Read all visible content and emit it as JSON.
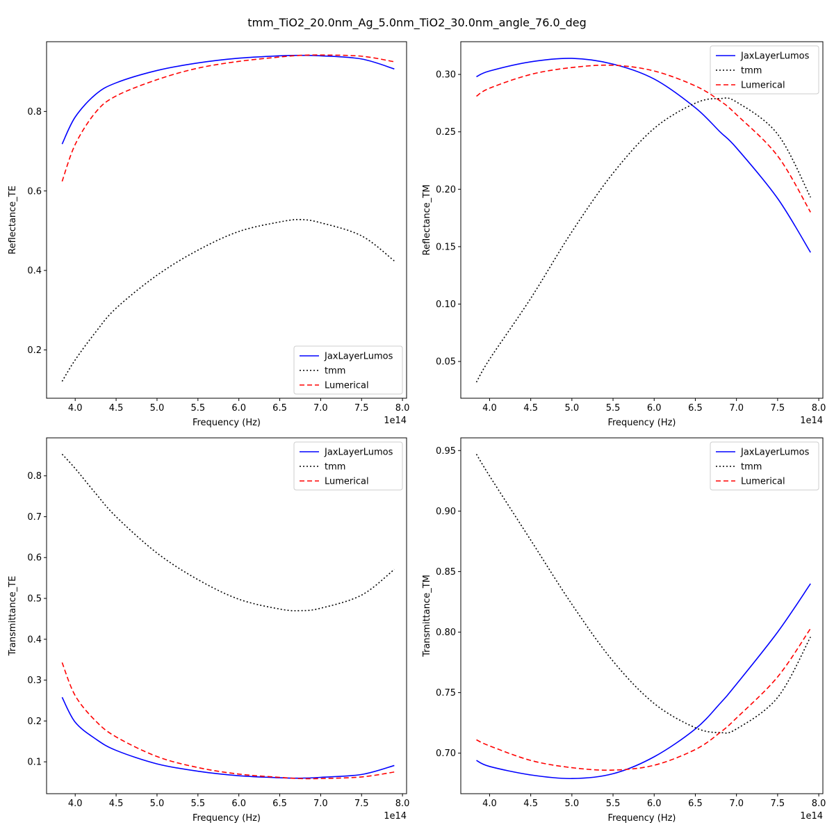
{
  "figure": {
    "title": "tmm_TiO2_20.0nm_Ag_5.0nm_TiO2_30.0nm_angle_76.0_deg"
  },
  "chart_data": [
    {
      "type": "line",
      "ylabel": "Reflectance_TE",
      "xlabel": "Frequency (Hz)",
      "x_offset_label": "1e14",
      "xlim": [
        3.65,
        8.05
      ],
      "ylim": [
        0.0785,
        0.9755
      ],
      "xticks": [
        "4.0",
        "4.5",
        "5.0",
        "5.5",
        "6.0",
        "6.5",
        "7.0",
        "7.5",
        "8.0"
      ],
      "yticks": [
        "0.2",
        "0.4",
        "0.6",
        "0.8"
      ],
      "legend": "lower-right",
      "x": [
        3.84,
        4.0,
        4.25,
        4.5,
        5.0,
        5.5,
        6.0,
        6.5,
        6.75,
        7.0,
        7.5,
        7.9
      ],
      "series": [
        {
          "name": "JaxLayerLumos",
          "color": "#0000ff",
          "style": "solid",
          "values": [
            0.718,
            0.786,
            0.843,
            0.872,
            0.903,
            0.922,
            0.934,
            0.94,
            0.941,
            0.94,
            0.932,
            0.907
          ]
        },
        {
          "name": "tmm",
          "color": "#000000",
          "style": "dotted",
          "values": [
            0.121,
            0.175,
            0.245,
            0.305,
            0.388,
            0.451,
            0.498,
            0.522,
            0.528,
            0.52,
            0.487,
            0.424
          ]
        },
        {
          "name": "Lumerical",
          "color": "#ff0000",
          "style": "dashed",
          "values": [
            0.624,
            0.717,
            0.798,
            0.839,
            0.88,
            0.909,
            0.926,
            0.937,
            0.941,
            0.942,
            0.939,
            0.925
          ]
        }
      ]
    },
    {
      "type": "line",
      "ylabel": "Reflectance_TM",
      "xlabel": "Frequency (Hz)",
      "x_offset_label": "1e14",
      "xlim": [
        3.65,
        8.05
      ],
      "ylim": [
        0.018,
        0.3285
      ],
      "xticks": [
        "4.0",
        "4.5",
        "5.0",
        "5.5",
        "6.0",
        "6.5",
        "7.0",
        "7.5",
        "8.0"
      ],
      "yticks": [
        "0.05",
        "0.10",
        "0.15",
        "0.20",
        "0.25",
        "0.30"
      ],
      "legend": "upper-right",
      "x": [
        3.84,
        4.0,
        4.5,
        5.0,
        5.5,
        6.0,
        6.5,
        6.8,
        7.0,
        7.5,
        7.9
      ],
      "series": [
        {
          "name": "JaxLayerLumos",
          "color": "#0000ff",
          "style": "solid",
          "values": [
            0.298,
            0.303,
            0.311,
            0.314,
            0.309,
            0.296,
            0.271,
            0.25,
            0.236,
            0.192,
            0.145
          ]
        },
        {
          "name": "tmm",
          "color": "#000000",
          "style": "dotted",
          "values": [
            0.032,
            0.052,
            0.105,
            0.163,
            0.214,
            0.253,
            0.275,
            0.279,
            0.276,
            0.248,
            0.193
          ]
        },
        {
          "name": "Lumerical",
          "color": "#ff0000",
          "style": "dashed",
          "values": [
            0.281,
            0.288,
            0.3,
            0.306,
            0.308,
            0.303,
            0.29,
            0.277,
            0.265,
            0.229,
            0.18
          ]
        }
      ]
    },
    {
      "type": "line",
      "ylabel": "Transmittance_TE",
      "xlabel": "Frequency (Hz)",
      "x_offset_label": "1e14",
      "xlim": [
        3.65,
        8.05
      ],
      "ylim": [
        0.022,
        0.893
      ],
      "xticks": [
        "4.0",
        "4.5",
        "5.0",
        "5.5",
        "6.0",
        "6.5",
        "7.0",
        "7.5",
        "8.0"
      ],
      "yticks": [
        "0.1",
        "0.2",
        "0.3",
        "0.4",
        "0.5",
        "0.6",
        "0.7",
        "0.8"
      ],
      "legend": "upper-right",
      "x": [
        3.84,
        4.0,
        4.25,
        4.5,
        5.0,
        5.5,
        6.0,
        6.5,
        6.75,
        7.0,
        7.5,
        7.9
      ],
      "series": [
        {
          "name": "JaxLayerLumos",
          "color": "#0000ff",
          "style": "solid",
          "values": [
            0.258,
            0.197,
            0.156,
            0.128,
            0.095,
            0.077,
            0.066,
            0.061,
            0.06,
            0.062,
            0.069,
            0.091
          ]
        },
        {
          "name": "tmm",
          "color": "#000000",
          "style": "dotted",
          "values": [
            0.853,
            0.818,
            0.757,
            0.7,
            0.611,
            0.546,
            0.498,
            0.474,
            0.47,
            0.476,
            0.508,
            0.571
          ]
        },
        {
          "name": "Lumerical",
          "color": "#ff0000",
          "style": "dashed",
          "values": [
            0.343,
            0.262,
            0.2,
            0.161,
            0.113,
            0.086,
            0.07,
            0.062,
            0.059,
            0.059,
            0.063,
            0.075
          ]
        }
      ]
    },
    {
      "type": "line",
      "ylabel": "Transmittance_TM",
      "xlabel": "Frequency (Hz)",
      "x_offset_label": "1e14",
      "xlim": [
        3.65,
        8.05
      ],
      "ylim": [
        0.6665,
        0.9605
      ],
      "xticks": [
        "4.0",
        "4.5",
        "5.0",
        "5.5",
        "6.0",
        "6.5",
        "7.0",
        "7.5",
        "8.0"
      ],
      "yticks": [
        "0.70",
        "0.75",
        "0.80",
        "0.85",
        "0.90",
        "0.95"
      ],
      "legend": "upper-right",
      "x": [
        3.84,
        4.0,
        4.5,
        5.0,
        5.5,
        6.0,
        6.5,
        6.8,
        7.0,
        7.5,
        7.9
      ],
      "series": [
        {
          "name": "JaxLayerLumos",
          "color": "#0000ff",
          "style": "solid",
          "values": [
            0.694,
            0.689,
            0.682,
            0.679,
            0.683,
            0.697,
            0.72,
            0.741,
            0.757,
            0.8,
            0.84
          ]
        },
        {
          "name": "tmm",
          "color": "#000000",
          "style": "dotted",
          "values": [
            0.947,
            0.929,
            0.876,
            0.823,
            0.776,
            0.741,
            0.721,
            0.717,
            0.72,
            0.746,
            0.796
          ]
        },
        {
          "name": "Lumerical",
          "color": "#ff0000",
          "style": "dashed",
          "values": [
            0.711,
            0.706,
            0.694,
            0.688,
            0.686,
            0.69,
            0.703,
            0.717,
            0.729,
            0.763,
            0.803
          ]
        }
      ]
    }
  ]
}
